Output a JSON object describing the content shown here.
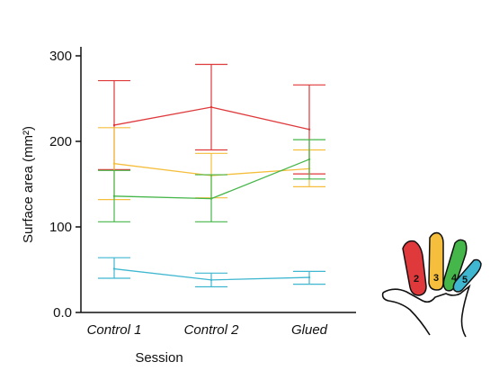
{
  "chart_data": {
    "type": "line",
    "xlabel": "Session",
    "ylabel": "Surface area (mm²)",
    "categories": [
      "Control 1",
      "Control 2",
      "Glued"
    ],
    "ylim": [
      0,
      300
    ],
    "yticks": [
      "0.0",
      "100",
      "200",
      "300"
    ],
    "ytick_values": [
      0,
      100,
      200,
      300
    ],
    "error_bars": true,
    "grid": false,
    "series": [
      {
        "color": "#e0393b",
        "values": [
          219,
          240,
          214
        ],
        "lower": [
          167,
          190,
          162
        ],
        "upper": [
          271,
          290,
          266
        ]
      },
      {
        "color": "#f5be3c",
        "values": [
          174,
          160,
          168
        ],
        "lower": [
          132,
          134,
          147
        ],
        "upper": [
          216,
          186,
          190
        ]
      },
      {
        "color": "#45b649",
        "values": [
          136,
          133,
          179
        ],
        "lower": [
          106,
          106,
          156
        ],
        "upper": [
          166,
          161,
          202
        ]
      },
      {
        "color": "#3fb7d0",
        "values": [
          51,
          38,
          41
        ],
        "lower": [
          40,
          30,
          33
        ],
        "upper": [
          64,
          46,
          48
        ]
      }
    ]
  },
  "hand_diagram": {
    "fingers": [
      {
        "number": "2",
        "color": "#e0393b"
      },
      {
        "number": "3",
        "color": "#f5be3c"
      },
      {
        "number": "4",
        "color": "#45b649"
      },
      {
        "number": "5",
        "color": "#3fb7d0"
      }
    ]
  }
}
